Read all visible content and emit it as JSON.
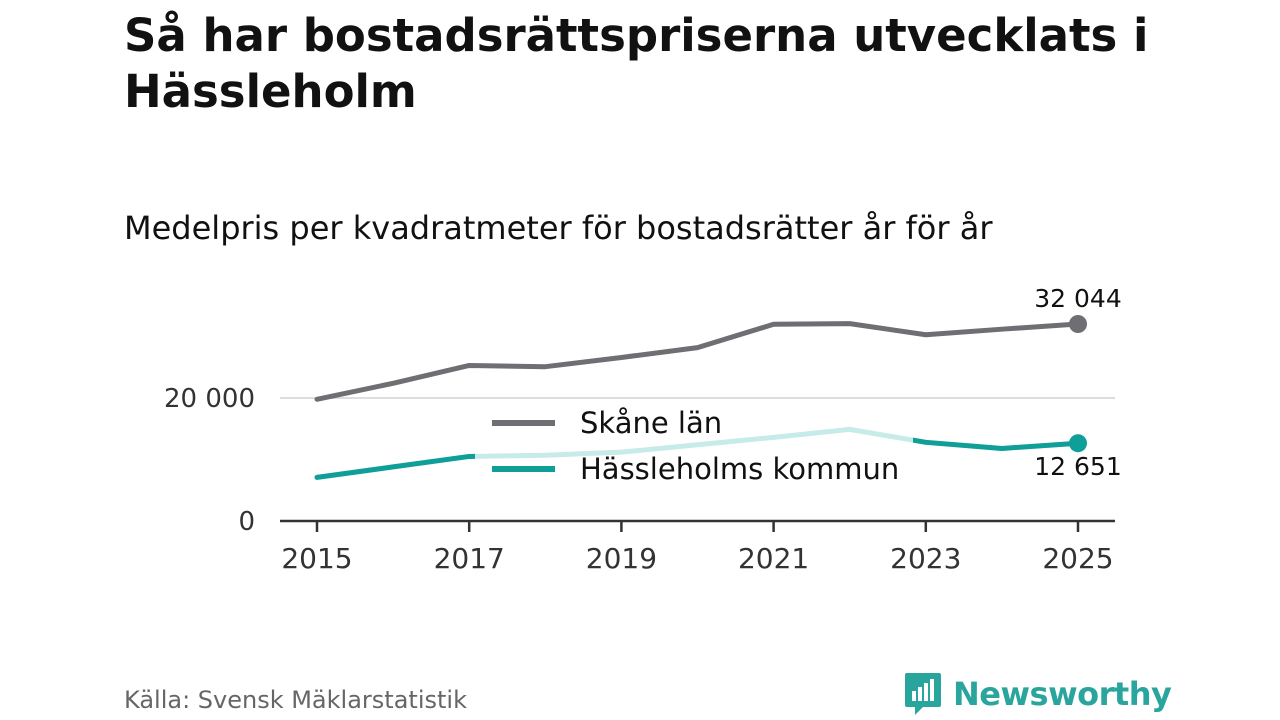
{
  "title": "Så har bostadsrättspriserna utvecklats i Hässleholm",
  "subtitle": "Medelpris per kvadratmeter för bostadsrätter år för år",
  "source": "Källa: Svensk Mäklarstatistik",
  "brand": {
    "name": "Newsworthy",
    "icon": "newsworthy-logo-icon"
  },
  "colors": {
    "skane": "#6e6e73",
    "hassleholm": "#109e98",
    "hassleholm_light": "#c6ebe8",
    "grid": "#dddddd",
    "axis": "#333333",
    "text": "#111111",
    "brand": "#2aa59e"
  },
  "chart_data": {
    "type": "line",
    "title": "Medelpris per kvadratmeter för bostadsrätter år för år",
    "xlabel": "",
    "ylabel": "",
    "x": [
      2015,
      2016,
      2017,
      2018,
      2019,
      2020,
      2021,
      2022,
      2023,
      2024,
      2025
    ],
    "xticks": [
      "2015",
      "2017",
      "2019",
      "2021",
      "2023",
      "2025"
    ],
    "xlim": [
      2015,
      2025
    ],
    "ylim": [
      0,
      32044
    ],
    "yticks": [
      {
        "value": 0,
        "label": "0"
      },
      {
        "value": 20000,
        "label": "20 000"
      }
    ],
    "legend": {
      "placement": "center",
      "entries": [
        "Skåne län",
        "Hässleholms kommun"
      ]
    },
    "series": [
      {
        "name": "Skåne län",
        "color": "#6e6e73",
        "values": [
          19800,
          22400,
          25300,
          25100,
          26600,
          28200,
          32000,
          32100,
          30300,
          31200,
          32044
        ],
        "end_label": "32 044"
      },
      {
        "name": "Hässleholms kommun",
        "color": "#109e98",
        "values": [
          7100,
          8800,
          10500,
          10700,
          11200,
          12400,
          13600,
          14900,
          12800,
          11800,
          12651
        ],
        "end_label": "12 651"
      }
    ]
  }
}
